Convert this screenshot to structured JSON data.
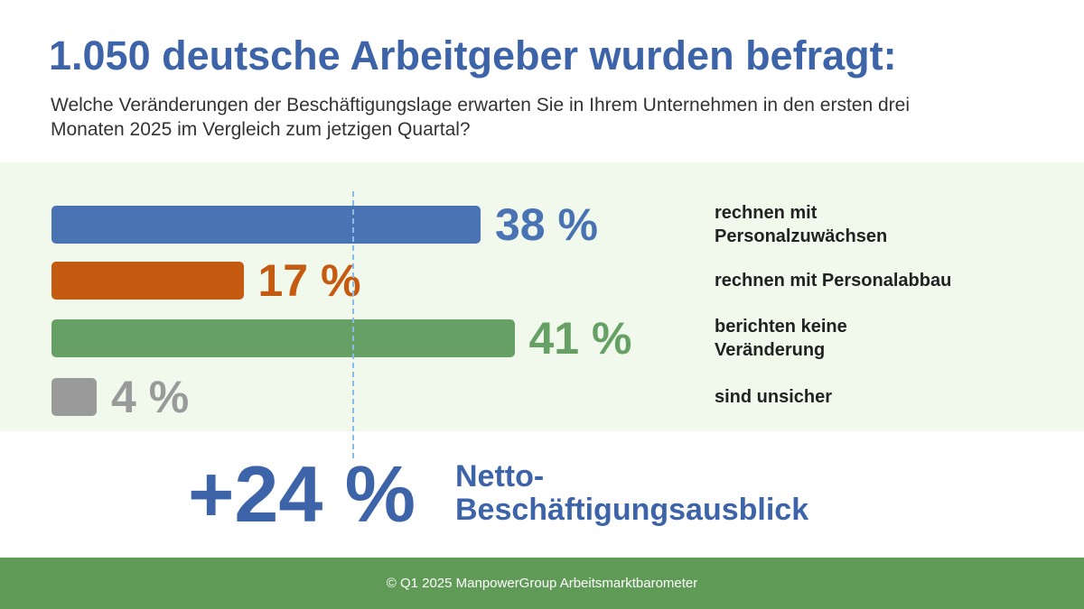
{
  "chart_data": {
    "type": "bar",
    "orientation": "horizontal",
    "title": "1.050 deutsche Arbeitgeber wurden befragt:",
    "subtitle": "Welche Veränderungen der Beschäftigungslage erwarten Sie in Ihrem Unternehmen in den ersten drei Monaten 2025 im Vergleich zum jetzigen Quartal?",
    "categories": [
      "rechnen mit\nPersonalzuwächsen",
      "rechnen mit Personalabbau",
      "berichten keine\nVeränderung",
      "sind unsicher"
    ],
    "values": [
      38,
      17,
      41,
      4
    ],
    "value_labels": [
      "38 %",
      "17 %",
      "41 %",
      "4 %"
    ],
    "colors": [
      "#4a73b3",
      "#c55a11",
      "#67a064",
      "#9a9a9a"
    ],
    "annotations": [
      "+24 %",
      "Netto-\nBeschäftigungsausblick"
    ],
    "footer": "© Q1 2025 ManpowerGroup Arbeitsmarktbarometer"
  }
}
